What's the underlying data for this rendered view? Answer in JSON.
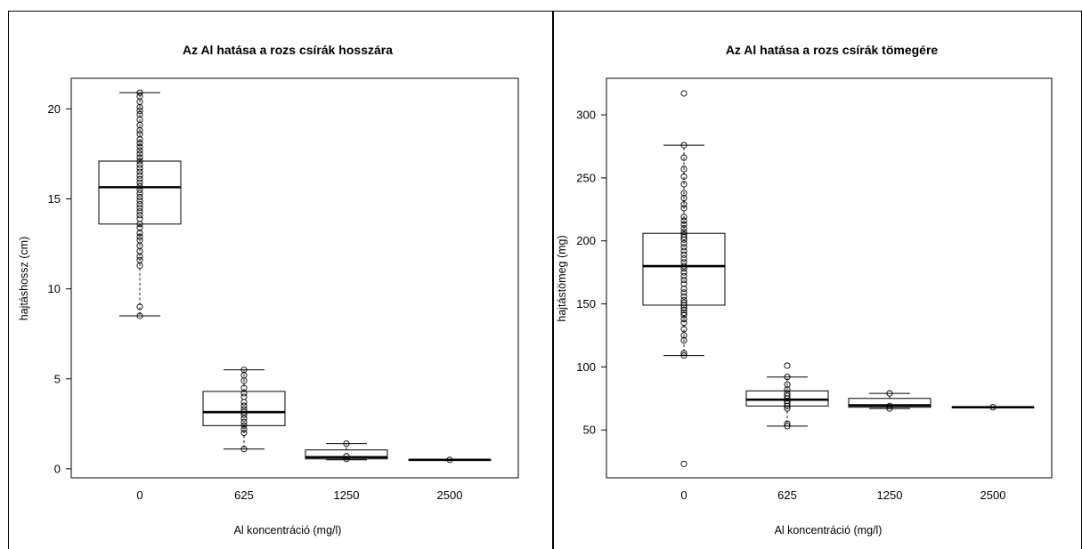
{
  "chart_data": [
    {
      "type": "box",
      "title": "Az Al hatása a rozs csírák hosszára",
      "xlabel": "Al koncentráció (mg/l)",
      "ylabel": "hajtáshossz (cm)",
      "categories": [
        "0",
        "625",
        "1250",
        "2500"
      ],
      "ylim": [
        -0.5,
        21.7
      ],
      "yticks": [
        "0",
        "5",
        "10",
        "15",
        "20"
      ],
      "boxes": [
        {
          "category": "0",
          "whisker_low": 8.5,
          "q1": 13.6,
          "median": 15.65,
          "q3": 17.1,
          "whisker_high": 20.9
        },
        {
          "category": "625",
          "whisker_low": 1.1,
          "q1": 2.4,
          "median": 3.15,
          "q3": 4.3,
          "whisker_high": 5.5
        },
        {
          "category": "1250",
          "whisker_low": 0.5,
          "q1": 0.55,
          "median": 0.65,
          "q3": 1.05,
          "whisker_high": 1.4
        },
        {
          "category": "2500",
          "whisker_low": 0.5,
          "q1": 0.5,
          "median": 0.5,
          "q3": 0.5,
          "whisker_high": 0.5
        }
      ],
      "points": [
        {
          "category": "0",
          "values": [
            20.9,
            20.7,
            20.4,
            20.1,
            19.9,
            19.7,
            19.4,
            19.1,
            18.8,
            18.6,
            18.3,
            18.1,
            17.9,
            17.7,
            17.5,
            17.3,
            17.1,
            16.9,
            16.7,
            16.5,
            16.3,
            16.1,
            15.9,
            15.7,
            15.5,
            15.3,
            15.1,
            14.9,
            14.7,
            14.5,
            14.3,
            14.1,
            13.9,
            13.6,
            13.4,
            13.1,
            12.9,
            12.7,
            12.4,
            12.1,
            11.8,
            11.6,
            11.3,
            9.0,
            8.5
          ]
        },
        {
          "category": "625",
          "values": [
            5.5,
            5.2,
            4.9,
            4.5,
            4.2,
            4.0,
            3.7,
            3.5,
            3.3,
            3.15,
            3.0,
            2.8,
            2.6,
            2.4,
            2.2,
            2.0,
            1.1
          ]
        },
        {
          "category": "1250",
          "values": [
            1.4,
            0.7,
            0.55
          ]
        },
        {
          "category": "2500",
          "values": [
            0.5
          ]
        }
      ]
    },
    {
      "type": "box",
      "title": "Az Al hatása a rozs csírák tömegére",
      "xlabel": "Al koncentráció (mg/l)",
      "ylabel": "hajtástömeg (mg)",
      "categories": [
        "0",
        "625",
        "1250",
        "2500"
      ],
      "ylim": [
        12,
        329
      ],
      "yticks": [
        "50",
        "100",
        "150",
        "200",
        "250",
        "300"
      ],
      "boxes": [
        {
          "category": "0",
          "whisker_low": 109,
          "q1": 149,
          "median": 180,
          "q3": 206,
          "whisker_high": 276
        },
        {
          "category": "625",
          "whisker_low": 53,
          "q1": 69,
          "median": 74,
          "q3": 81,
          "whisker_high": 92
        },
        {
          "category": "1250",
          "whisker_low": 67,
          "q1": 68,
          "median": 69.5,
          "q3": 75,
          "whisker_high": 79
        },
        {
          "category": "2500",
          "whisker_low": 68,
          "q1": 68,
          "median": 68,
          "q3": 68,
          "whisker_high": 68
        }
      ],
      "points": [
        {
          "category": "0",
          "values": [
            317,
            276,
            266,
            257,
            251,
            245,
            238,
            234,
            229,
            226,
            219,
            216,
            213,
            210,
            207,
            205,
            203,
            201,
            198,
            195,
            192,
            189,
            186,
            183,
            180,
            178,
            175,
            172,
            169,
            166,
            162,
            159,
            156,
            153,
            151,
            149,
            147,
            145,
            143,
            141,
            138,
            135,
            130,
            125,
            121,
            111,
            109,
            23
          ]
        },
        {
          "category": "625",
          "values": [
            101,
            92,
            86,
            82,
            79,
            77,
            75,
            73,
            71,
            69,
            67,
            55,
            53
          ]
        },
        {
          "category": "1250",
          "values": [
            79,
            69,
            67
          ]
        },
        {
          "category": "2500",
          "values": [
            68
          ]
        }
      ]
    }
  ]
}
